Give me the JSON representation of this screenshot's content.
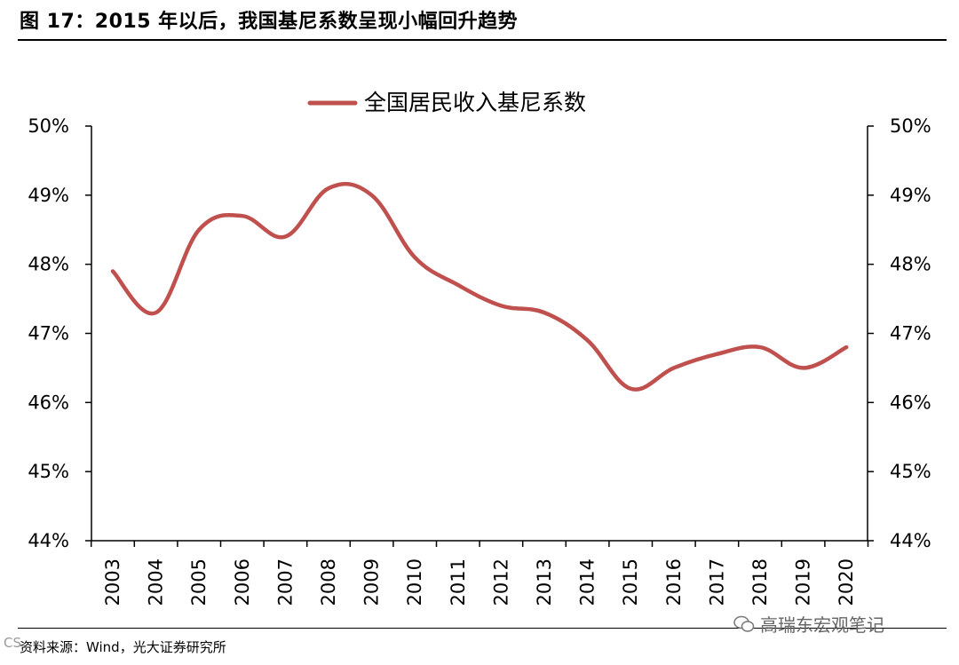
{
  "figure": {
    "title": "图 17：2015 年以后，我国基尼系数呈现小幅回升趋势",
    "source": "资料来源：Wind，光大证券研究所",
    "watermark": "高瑞东宏观笔记",
    "corner_mark": "CS"
  },
  "colors": {
    "series": "#c0504d",
    "axis": "#000000"
  },
  "chart_data": {
    "type": "line",
    "title": "",
    "xlabel": "",
    "ylabel": "",
    "ylim": [
      44,
      50
    ],
    "y_ticks": [
      44,
      45,
      46,
      47,
      48,
      49,
      50
    ],
    "y_tick_labels": [
      "44%",
      "45%",
      "46%",
      "47%",
      "48%",
      "49%",
      "50%"
    ],
    "dual_y_axis": true,
    "grid": false,
    "legend_position": "top-center",
    "categories": [
      "2003",
      "2004",
      "2005",
      "2006",
      "2007",
      "2008",
      "2009",
      "2010",
      "2011",
      "2012",
      "2013",
      "2014",
      "2015",
      "2016",
      "2017",
      "2018",
      "2019",
      "2020"
    ],
    "series": [
      {
        "name": "全国居民收入基尼系数",
        "values": [
          47.9,
          47.3,
          48.5,
          48.7,
          48.4,
          49.1,
          49.0,
          48.1,
          47.7,
          47.4,
          47.3,
          46.9,
          46.2,
          46.5,
          46.7,
          46.8,
          46.5,
          46.8
        ]
      }
    ]
  }
}
